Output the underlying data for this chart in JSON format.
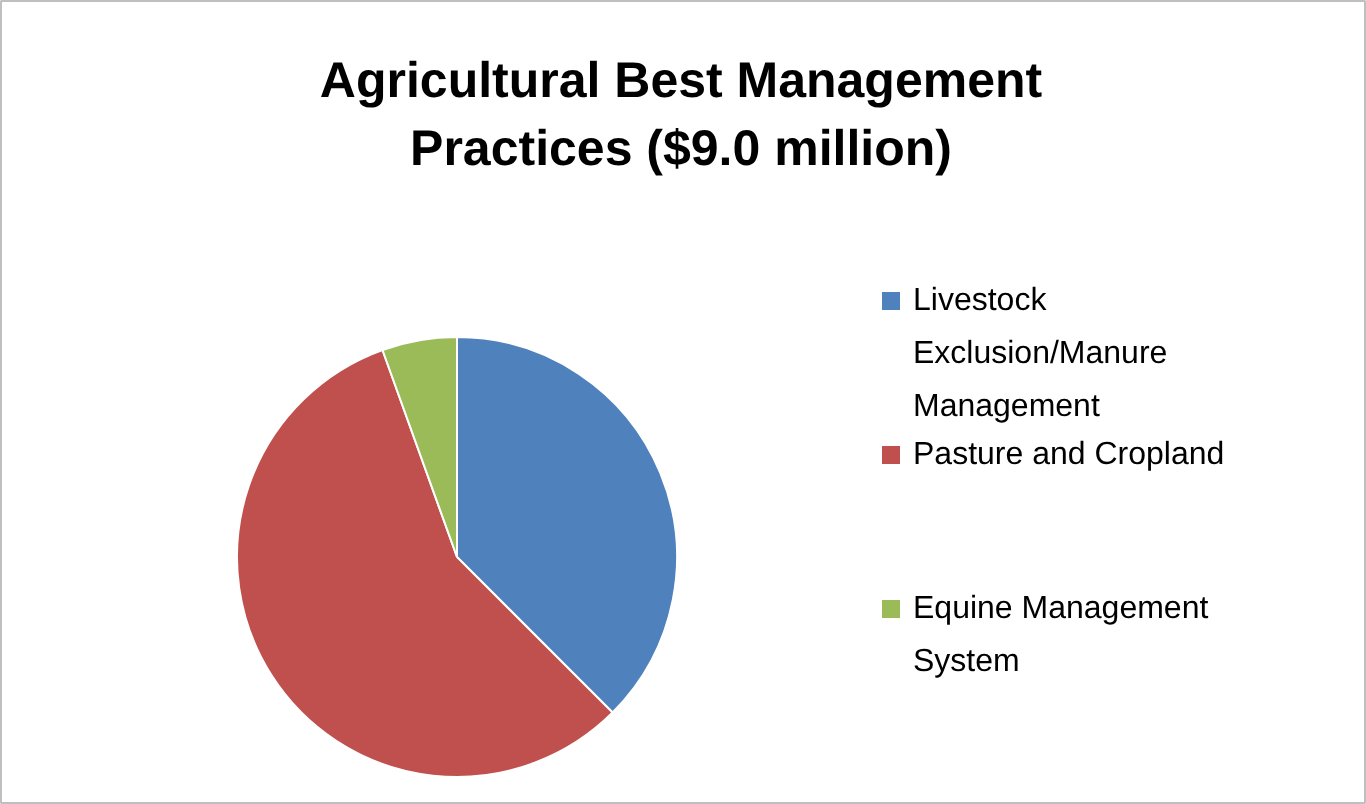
{
  "chart_data": {
    "type": "pie",
    "title": "Agricultural Best Management Practices ($9.0 million)",
    "categories": [
      "Livestock Exclusion/Manure Management",
      "Pasture and Cropland",
      "Equine Management System"
    ],
    "values": [
      37.5,
      57,
      5.5
    ],
    "colors": [
      "#4f81bd",
      "#c0504d",
      "#9bbb59"
    ],
    "legend": "right"
  }
}
